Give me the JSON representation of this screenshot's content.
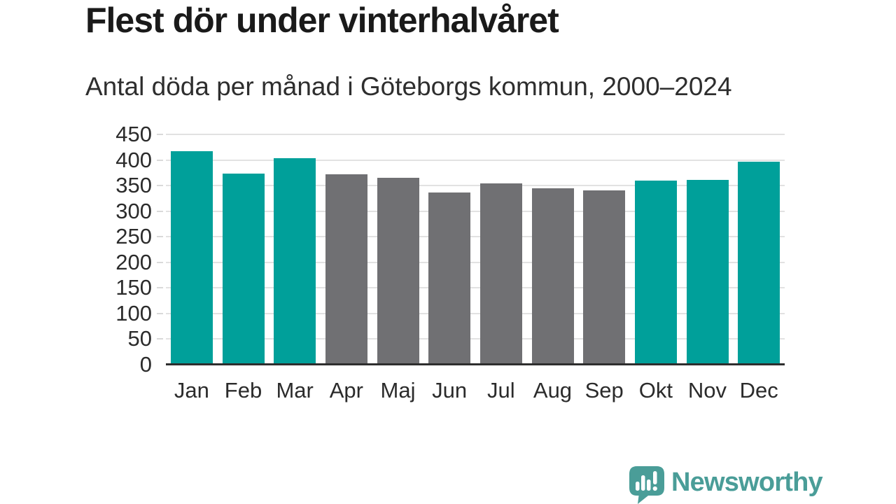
{
  "chart_data": {
    "type": "bar",
    "title": "Flest dör under vinterhalvåret",
    "subtitle": "Antal döda per månad i Göteborgs kommun, 2000–2024",
    "categories": [
      "Jan",
      "Feb",
      "Mar",
      "Apr",
      "Maj",
      "Jun",
      "Jul",
      "Aug",
      "Sep",
      "Okt",
      "Nov",
      "Dec"
    ],
    "values": [
      417,
      373,
      404,
      372,
      365,
      337,
      354,
      344,
      341,
      360,
      361,
      397
    ],
    "bar_colors": [
      "teal",
      "teal",
      "teal",
      "gray",
      "gray",
      "gray",
      "gray",
      "gray",
      "gray",
      "teal",
      "teal",
      "teal"
    ],
    "palette": {
      "teal": "#00A09A",
      "gray": "#707073"
    },
    "xlabel": "",
    "ylabel": "",
    "ylim": [
      0,
      450
    ],
    "ytick_step": 50,
    "yticks": [
      0,
      50,
      100,
      150,
      200,
      250,
      300,
      350,
      400,
      450
    ],
    "grid": true,
    "legend": false
  },
  "footer": {
    "brand_name": "Newsworthy",
    "brand_color": "#4A9D98",
    "logo_icon": "speech-bubble-bar-chart-icon"
  },
  "style": {
    "background": "#FFFFFF",
    "grid_color": "#E2E2E2",
    "axis_color": "#2E2E2E",
    "text_color": "#2B2B2B",
    "title_color": "#1A1A1A",
    "subtitle_color": "#2E2E2E"
  }
}
